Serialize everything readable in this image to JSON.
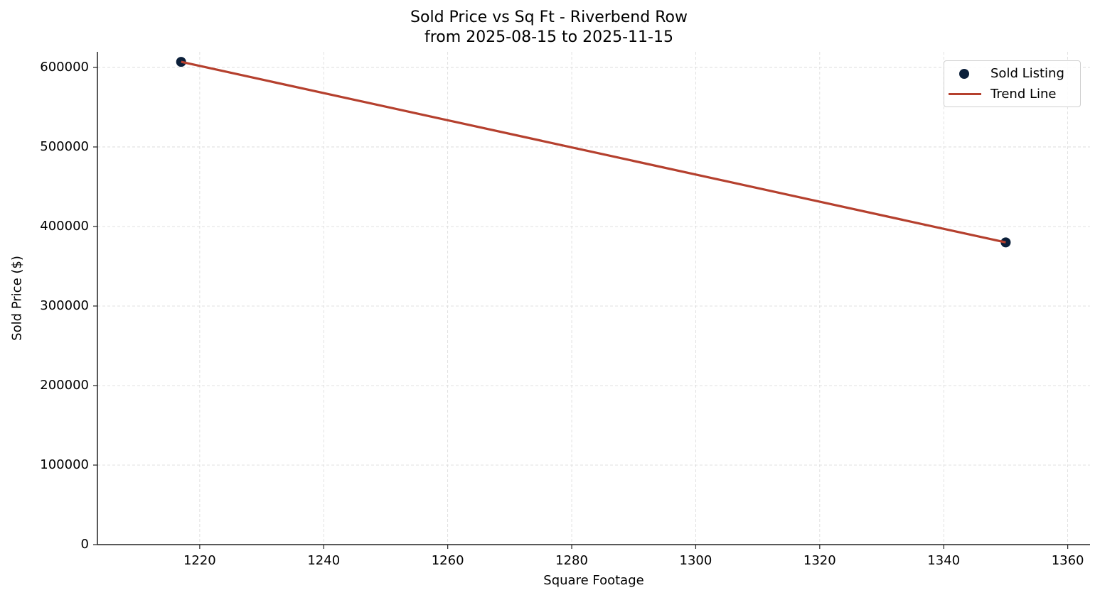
{
  "title_line1": "Sold Price vs Sq Ft - Riverbend Row",
  "title_line2": "from 2025-08-15 to 2025-11-15",
  "xlabel": "Square Footage",
  "ylabel": "Sold Price ($)",
  "legend": {
    "items": [
      {
        "label": "Sold Listing",
        "marker": "dot",
        "color": "#0b1f3a"
      },
      {
        "label": "Trend Line",
        "marker": "line",
        "color": "#b5402e"
      }
    ]
  },
  "colors": {
    "points": "#0b1f3a",
    "trend": "#b5402e",
    "grid": "#d9d9d9",
    "axis": "#222222"
  },
  "chart_data": {
    "type": "scatter",
    "title": "Sold Price vs Sq Ft - Riverbend Row\nfrom 2025-08-15 to 2025-11-15",
    "xlabel": "Square Footage",
    "ylabel": "Sold Price ($)",
    "xlim": [
      1203.5,
      1363.6
    ],
    "ylim": [
      0,
      619600
    ],
    "xticks": [
      1220,
      1240,
      1260,
      1280,
      1300,
      1320,
      1340,
      1360
    ],
    "yticks": [
      0,
      100000,
      200000,
      300000,
      400000,
      500000,
      600000
    ],
    "grid": true,
    "legend_position": "upper right",
    "series": [
      {
        "name": "Sold Listing",
        "type": "scatter",
        "x": [
          1217,
          1350
        ],
        "y": [
          607000,
          380000
        ]
      },
      {
        "name": "Trend Line",
        "type": "line",
        "x": [
          1217,
          1350
        ],
        "y": [
          607000,
          380000
        ]
      }
    ]
  }
}
